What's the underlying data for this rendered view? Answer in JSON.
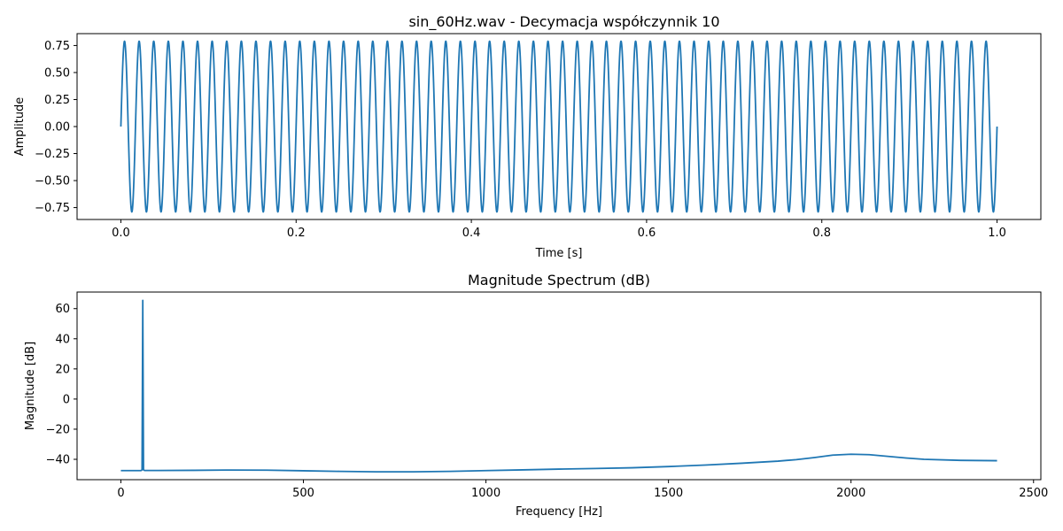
{
  "chart_data": [
    {
      "type": "line",
      "title": "sin_60Hz.wav - Decymacja współczynnik 10",
      "xlabel": "Time [s]",
      "ylabel": "Amplitude",
      "xlim": [
        -0.05,
        1.05
      ],
      "ylim": [
        -0.86,
        0.86
      ],
      "xticks": [
        0.0,
        0.2,
        0.4,
        0.6,
        0.8,
        1.0
      ],
      "xtick_labels": [
        "0.0",
        "0.2",
        "0.4",
        "0.6",
        "0.8",
        "1.0"
      ],
      "yticks": [
        -0.75,
        -0.5,
        -0.25,
        0.0,
        0.25,
        0.5,
        0.75
      ],
      "ytick_labels": [
        "−0.75",
        "−0.50",
        "−0.25",
        "0.00",
        "0.25",
        "0.50",
        "0.75"
      ],
      "grid": false,
      "series": [
        {
          "color": "#1f77b4",
          "signal": "sine",
          "frequency_hz": 60,
          "amplitude": 0.79,
          "sample_rate_hz": 4800,
          "x_range": [
            0.0,
            1.0
          ]
        }
      ]
    },
    {
      "type": "line",
      "title": "Magnitude Spectrum (dB)",
      "xlabel": "Frequency [Hz]",
      "ylabel": "Magnitude [dB]",
      "xlim": [
        -120,
        2520
      ],
      "ylim": [
        -53.5,
        71
      ],
      "xticks": [
        0,
        500,
        1000,
        1500,
        2000,
        2500
      ],
      "xtick_labels": [
        "0",
        "500",
        "1000",
        "1500",
        "2000",
        "2500"
      ],
      "yticks": [
        -40,
        -20,
        0,
        20,
        40,
        60
      ],
      "ytick_labels": [
        "−40",
        "−20",
        "0",
        "20",
        "40",
        "60"
      ],
      "grid": false,
      "series": [
        {
          "color": "#1f77b4",
          "x": [
            0,
            55,
            58,
            60,
            62,
            65,
            100,
            200,
            300,
            400,
            500,
            600,
            700,
            800,
            900,
            1000,
            1100,
            1200,
            1300,
            1400,
            1500,
            1600,
            1700,
            1800,
            1850,
            1900,
            1950,
            2000,
            2050,
            2100,
            2150,
            2200,
            2300,
            2400
          ],
          "y": [
            -47.5,
            -47.5,
            -47.0,
            65.5,
            -47.0,
            -47.4,
            -47.4,
            -47.3,
            -47.1,
            -47.2,
            -47.6,
            -48.0,
            -48.3,
            -48.3,
            -48.0,
            -47.5,
            -47.0,
            -46.5,
            -46.1,
            -45.6,
            -44.8,
            -43.8,
            -42.6,
            -41.2,
            -40.2,
            -38.8,
            -37.2,
            -36.6,
            -36.9,
            -38.0,
            -39.1,
            -40.0,
            -40.7,
            -40.9
          ]
        }
      ]
    }
  ]
}
